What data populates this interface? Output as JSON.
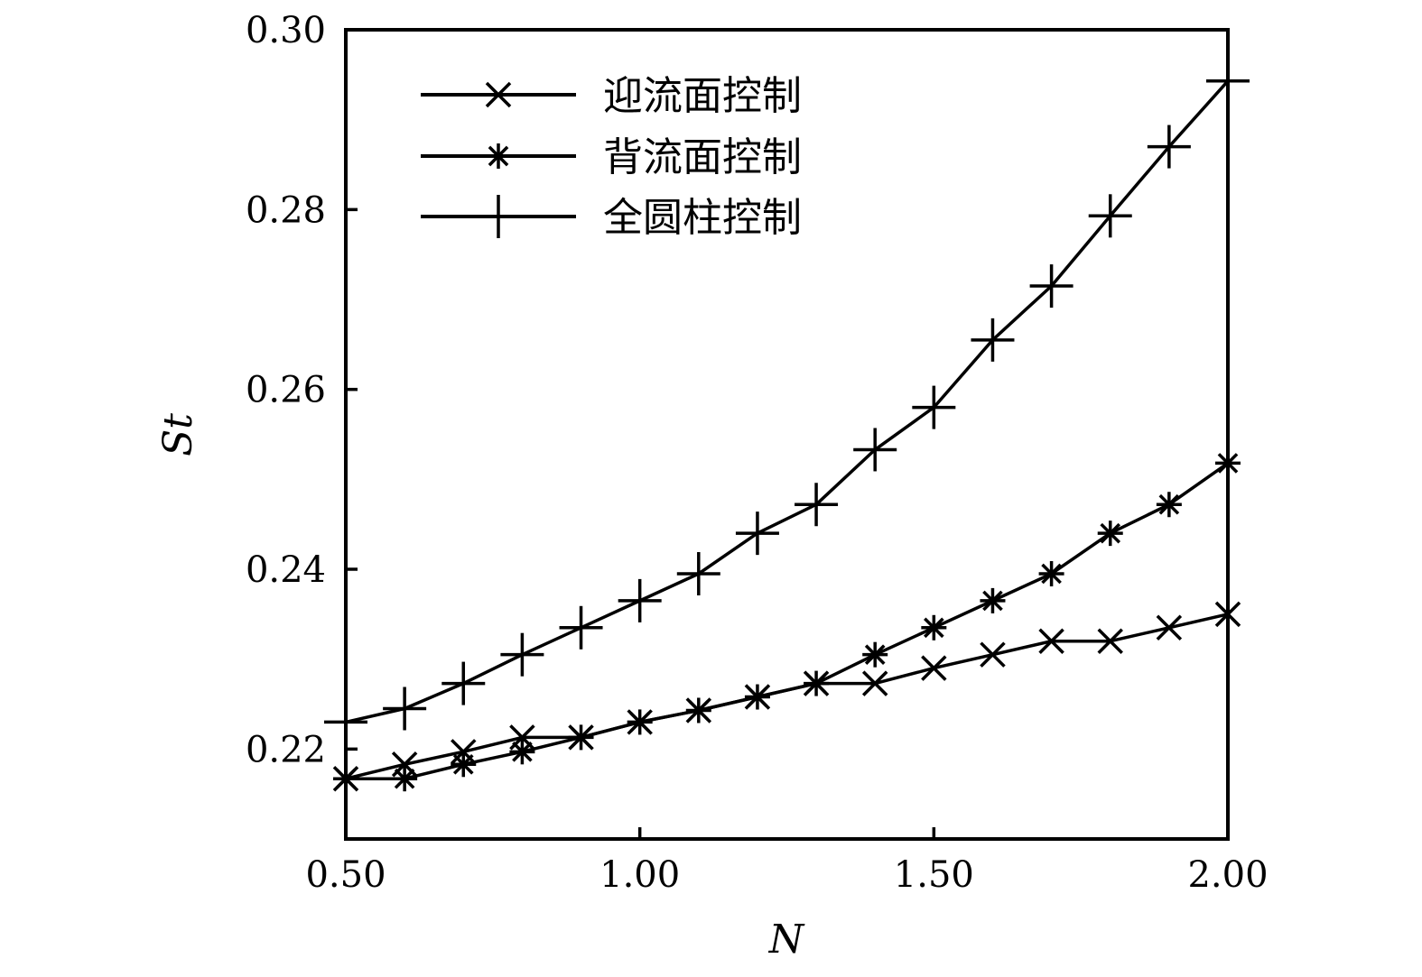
{
  "chart_data": {
    "type": "line",
    "title": "",
    "xlabel": "N",
    "ylabel": "St",
    "xlim": [
      0.5,
      2.0
    ],
    "ylim": [
      0.21,
      0.3
    ],
    "xticks": [
      0.5,
      1.0,
      1.5,
      2.0
    ],
    "xtick_labels": [
      "0.50",
      "1.00",
      "1.50",
      "2.00"
    ],
    "yticks": [
      0.22,
      0.24,
      0.26,
      0.28,
      0.3
    ],
    "ytick_labels": [
      "0.22",
      "0.24",
      "0.26",
      "0.28",
      "0.30"
    ],
    "grid": false,
    "legend_position": "top-left",
    "x": [
      0.5,
      0.6,
      0.7,
      0.8,
      0.9,
      1.0,
      1.1,
      1.2,
      1.3,
      1.4,
      1.5,
      1.6,
      1.7,
      1.8,
      1.9,
      2.0
    ],
    "series": [
      {
        "name": "迎流面控制",
        "marker": "x",
        "values": [
          0.2167,
          0.2183,
          0.2197,
          0.2213,
          0.2213,
          0.223,
          0.2243,
          0.2258,
          0.2273,
          0.2273,
          0.229,
          0.2305,
          0.232,
          0.232,
          0.2335,
          0.235
        ]
      },
      {
        "name": "背流面控制",
        "marker": "asterisk",
        "values": [
          0.2167,
          0.2167,
          0.2183,
          0.2197,
          0.2213,
          0.223,
          0.2243,
          0.2258,
          0.2273,
          0.2305,
          0.2335,
          0.2365,
          0.2395,
          0.244,
          0.2472,
          0.2518
        ]
      },
      {
        "name": "全圆柱控制",
        "marker": "plus",
        "values": [
          0.223,
          0.2245,
          0.2273,
          0.2305,
          0.2335,
          0.2365,
          0.2395,
          0.244,
          0.2472,
          0.2533,
          0.258,
          0.2655,
          0.2715,
          0.2793,
          0.287,
          0.2943
        ]
      }
    ]
  }
}
